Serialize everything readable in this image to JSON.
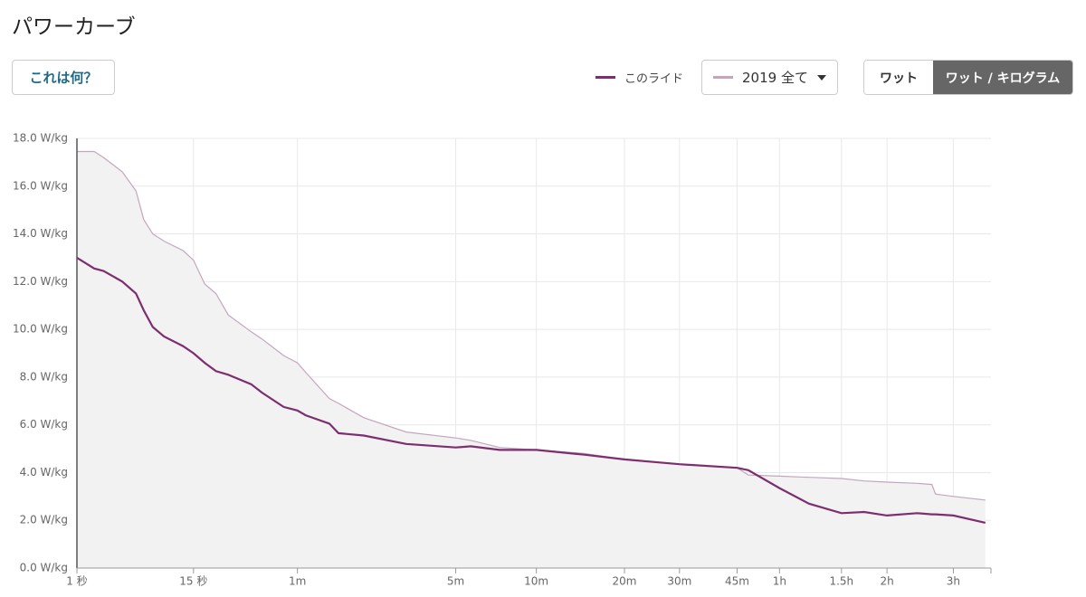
{
  "header": {
    "title": "パワーカーブ",
    "help_button": "これは何？",
    "unit_toggle": [
      "ワット",
      "ワット / キログラム"
    ]
  },
  "chart_data": {
    "type": "line",
    "log_x": true,
    "grid": true,
    "x": [
      1,
      1.9,
      2.5,
      4,
      5.4,
      6.3,
      7.5,
      9.2,
      12.7,
      15,
      17.8,
      21,
      25,
      34,
      39,
      51,
      60,
      66,
      86,
      95,
      124,
      189,
      300,
      343,
      441,
      600,
      883,
      1200,
      1800,
      2700,
      2917,
      3600,
      4376,
      5400,
      6235,
      7200,
      8670,
      9490,
      9700,
      10800,
      13060
    ],
    "series": [
      {
        "name": "このライド",
        "color": "#7d2e6f",
        "values": [
          13.0,
          12.55,
          12.45,
          12.0,
          11.5,
          10.8,
          10.1,
          9.7,
          9.3,
          9.0,
          8.6,
          8.25,
          8.1,
          7.7,
          7.35,
          6.75,
          6.6,
          6.4,
          6.05,
          5.65,
          5.55,
          5.2,
          5.05,
          5.1,
          4.95,
          4.95,
          4.75,
          4.55,
          4.35,
          4.2,
          4.1,
          3.35,
          2.7,
          2.3,
          2.35,
          2.2,
          2.3,
          2.25,
          2.25,
          2.2,
          1.9
        ]
      },
      {
        "name": "2019 全て",
        "color": "#c3a6bd",
        "fill": "#f3f2f3",
        "values": [
          17.45,
          17.45,
          17.2,
          16.6,
          15.8,
          14.6,
          14.0,
          13.7,
          13.3,
          12.9,
          11.9,
          11.5,
          10.6,
          9.9,
          9.6,
          8.9,
          8.6,
          8.2,
          7.1,
          6.9,
          6.3,
          5.7,
          5.45,
          5.35,
          5.05,
          4.95,
          4.8,
          4.55,
          4.35,
          4.2,
          3.9,
          3.85,
          3.8,
          3.75,
          3.65,
          3.6,
          3.55,
          3.5,
          3.1,
          3.0,
          2.85
        ]
      }
    ],
    "xlim": [
      1,
      13500
    ],
    "xticks": [
      {
        "value": 1,
        "label": "1 秒"
      },
      {
        "value": 15,
        "label": "15 秒"
      },
      {
        "value": 60,
        "label": "1m"
      },
      {
        "value": 300,
        "label": "5m"
      },
      {
        "value": 600,
        "label": "10m"
      },
      {
        "value": 1200,
        "label": "20m"
      },
      {
        "value": 1800,
        "label": "30m"
      },
      {
        "value": 2700,
        "label": "45m"
      },
      {
        "value": 3600,
        "label": "1h"
      },
      {
        "value": 5400,
        "label": "1.5h"
      },
      {
        "value": 7200,
        "label": "2h"
      },
      {
        "value": 10800,
        "label": "3h"
      }
    ],
    "ylim": [
      0,
      18
    ],
    "yticks": [
      {
        "value": 0,
        "label": "0.0 W/kg"
      },
      {
        "value": 2,
        "label": "2.0 W/kg"
      },
      {
        "value": 4,
        "label": "4.0 W/kg"
      },
      {
        "value": 6,
        "label": "6.0 W/kg"
      },
      {
        "value": 8,
        "label": "8.0 W/kg"
      },
      {
        "value": 10,
        "label": "10.0 W/kg"
      },
      {
        "value": 12,
        "label": "12.0 W/kg"
      },
      {
        "value": 14,
        "label": "14.0 W/kg"
      },
      {
        "value": 16,
        "label": "16.0 W/kg"
      },
      {
        "value": 18,
        "label": "18.0 W/kg"
      }
    ]
  }
}
